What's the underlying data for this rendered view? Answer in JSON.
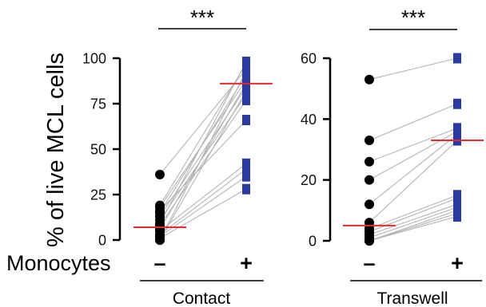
{
  "chart_data": [
    {
      "type": "scatter",
      "group_label": "Contact",
      "significance": "***",
      "xlabel": "Monocytes",
      "ylabel": "% of live MCL cells",
      "categories": [
        "–",
        "+"
      ],
      "ylim": [
        0,
        100
      ],
      "yticks": [
        0,
        25,
        50,
        75,
        100
      ],
      "grid": false,
      "paired_values": [
        [
          36,
          94
        ],
        [
          19,
          97
        ],
        [
          18,
          88
        ],
        [
          16,
          66
        ],
        [
          15,
          91
        ],
        [
          13,
          84
        ],
        [
          11,
          80
        ],
        [
          9,
          98
        ],
        [
          8,
          77
        ],
        [
          6,
          86
        ],
        [
          5,
          42
        ],
        [
          3,
          39
        ],
        [
          2,
          35
        ],
        [
          1,
          28
        ],
        [
          0,
          82
        ],
        [
          0,
          93
        ]
      ],
      "reference_y": [
        7,
        86
      ]
    },
    {
      "type": "scatter",
      "group_label": "Transwell",
      "significance": "***",
      "categories": [
        "–",
        "+"
      ],
      "ylim": [
        0,
        60
      ],
      "yticks": [
        0,
        20,
        40,
        60
      ],
      "grid": false,
      "paired_values": [
        [
          53,
          60
        ],
        [
          33,
          45
        ],
        [
          26,
          37
        ],
        [
          20,
          36
        ],
        [
          12,
          35
        ],
        [
          6,
          33
        ],
        [
          4,
          15
        ],
        [
          3,
          14
        ],
        [
          2,
          12
        ],
        [
          1,
          11
        ],
        [
          0,
          10
        ],
        [
          0,
          9
        ],
        [
          0,
          8
        ]
      ],
      "reference_y": [
        5,
        33
      ]
    }
  ],
  "colors": {
    "minus_points": "#000000",
    "plus_points": "#2b3aa0",
    "connectors": "#b4b4b4",
    "reference_lines": "#e42b2f",
    "axes": "#000000"
  }
}
